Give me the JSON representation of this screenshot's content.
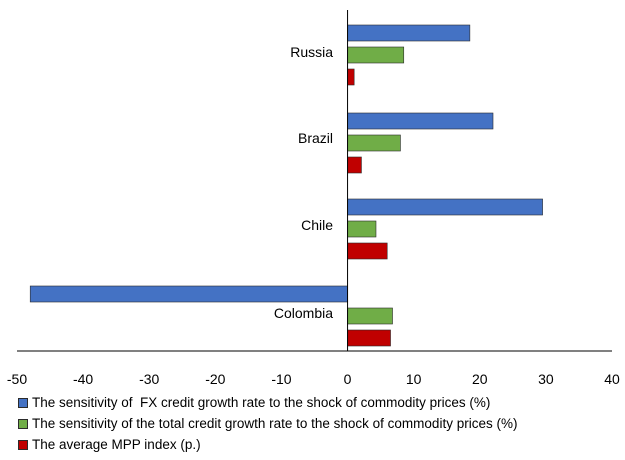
{
  "chart_data": {
    "type": "bar",
    "orientation": "horizontal",
    "title": "",
    "xlabel": "",
    "ylabel": "",
    "xlim": [
      -50,
      40
    ],
    "x_ticks": [
      -50,
      -40,
      -30,
      -20,
      -10,
      0,
      10,
      20,
      30,
      40
    ],
    "grid": false,
    "legend_position": "bottom",
    "categories": [
      "Russia",
      "Brazil",
      "Chile",
      "Colombia"
    ],
    "series": [
      {
        "name": "The sensitivity of  FX credit growth rate to the shock of commodity prices (%)",
        "color": "#4472C4",
        "values": [
          18.5,
          22,
          29.5,
          -48
        ]
      },
      {
        "name": "The sensitivity of the total credit growth rate to the shock of commodity prices (%)",
        "color": "#70AD47",
        "values": [
          8.5,
          8,
          4.3,
          6.8
        ]
      },
      {
        "name": "The average MPP index (p.)",
        "color": "#C00000",
        "values": [
          1,
          2.1,
          6,
          6.5
        ]
      }
    ]
  }
}
